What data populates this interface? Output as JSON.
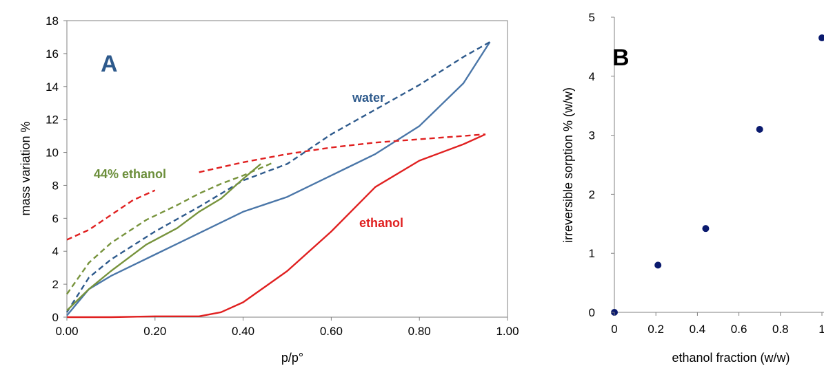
{
  "chart_data": [
    {
      "type": "line",
      "panel_label": "A",
      "xlabel": "p/p°",
      "ylabel": "mass variation %",
      "xlim": [
        0.0,
        1.0
      ],
      "ylim": [
        0,
        18
      ],
      "xticks": [
        "0.00",
        "0.20",
        "0.40",
        "0.60",
        "0.80",
        "1.00"
      ],
      "yticks": [
        "0",
        "2",
        "4",
        "6",
        "8",
        "10",
        "12",
        "14",
        "16",
        "18"
      ],
      "grid": false,
      "annotations": [
        {
          "text": "water",
          "color": "#2E5A8C"
        },
        {
          "text": "44% ethanol",
          "color": "#6B8E3A"
        },
        {
          "text": "ethanol",
          "color": "#E02020"
        }
      ],
      "series": [
        {
          "color": "#4A76A8",
          "style": "solid",
          "x": [
            0.0,
            0.05,
            0.1,
            0.2,
            0.3,
            0.4,
            0.5,
            0.6,
            0.7,
            0.8,
            0.9,
            0.96
          ],
          "y": [
            0.1,
            1.7,
            2.5,
            3.8,
            5.1,
            6.4,
            7.3,
            8.6,
            9.9,
            11.6,
            14.2,
            16.7
          ]
        },
        {
          "color": "#2E5A8C",
          "style": "dashed",
          "x": [
            0.0,
            0.05,
            0.1,
            0.2,
            0.3,
            0.4,
            0.5,
            0.6,
            0.7,
            0.8,
            0.9,
            0.96
          ],
          "y": [
            0.3,
            2.4,
            3.5,
            5.2,
            6.7,
            8.3,
            9.3,
            11.1,
            12.6,
            14.1,
            15.8,
            16.7
          ]
        },
        {
          "color": "#77933C",
          "style": "solid",
          "x": [
            0.0,
            0.05,
            0.1,
            0.18,
            0.25,
            0.3,
            0.35,
            0.4,
            0.44
          ],
          "y": [
            0.4,
            1.7,
            2.8,
            4.4,
            5.4,
            6.4,
            7.2,
            8.4,
            9.3
          ]
        },
        {
          "color": "#77933C",
          "style": "dashed",
          "x": [
            0.0,
            0.05,
            0.1,
            0.18,
            0.25,
            0.3,
            0.35,
            0.4,
            0.47
          ],
          "y": [
            1.4,
            3.3,
            4.5,
            5.9,
            6.8,
            7.5,
            8.1,
            8.6,
            9.4
          ]
        },
        {
          "color": "#E02020",
          "style": "solid",
          "x": [
            0.0,
            0.1,
            0.2,
            0.3,
            0.35,
            0.4,
            0.5,
            0.6,
            0.7,
            0.8,
            0.9,
            0.95
          ],
          "y": [
            0.0,
            0.0,
            0.05,
            0.05,
            0.3,
            0.9,
            2.8,
            5.2,
            7.9,
            9.5,
            10.5,
            11.1
          ]
        },
        {
          "color": "#E02020",
          "style": "dashed",
          "x": [
            0.0,
            0.05,
            0.1,
            0.15,
            0.2
          ],
          "y": [
            4.7,
            5.3,
            6.2,
            7.1,
            7.7
          ]
        },
        {
          "color": "#E02020",
          "style": "dashed",
          "x": [
            0.3,
            0.4,
            0.5,
            0.6,
            0.7,
            0.8,
            0.9,
            0.95
          ],
          "y": [
            8.8,
            9.4,
            9.9,
            10.3,
            10.6,
            10.8,
            11.0,
            11.1
          ]
        }
      ]
    },
    {
      "type": "scatter",
      "panel_label": "B",
      "xlabel": "ethanol  fraction  (w/w)",
      "ylabel": "irreversible  sorption  %  (w/w)",
      "xlim": [
        0,
        1
      ],
      "ylim": [
        0,
        5
      ],
      "xticks": [
        "0",
        "0.2",
        "0.4",
        "0.6",
        "0.8",
        "1"
      ],
      "yticks": [
        "0",
        "1",
        "2",
        "3",
        "4",
        "5"
      ],
      "grid": false,
      "marker_color": "#0A1A6E",
      "x": [
        0.0,
        0.21,
        0.44,
        0.7,
        1.0
      ],
      "y": [
        0.0,
        0.8,
        1.42,
        3.1,
        4.65
      ]
    }
  ]
}
